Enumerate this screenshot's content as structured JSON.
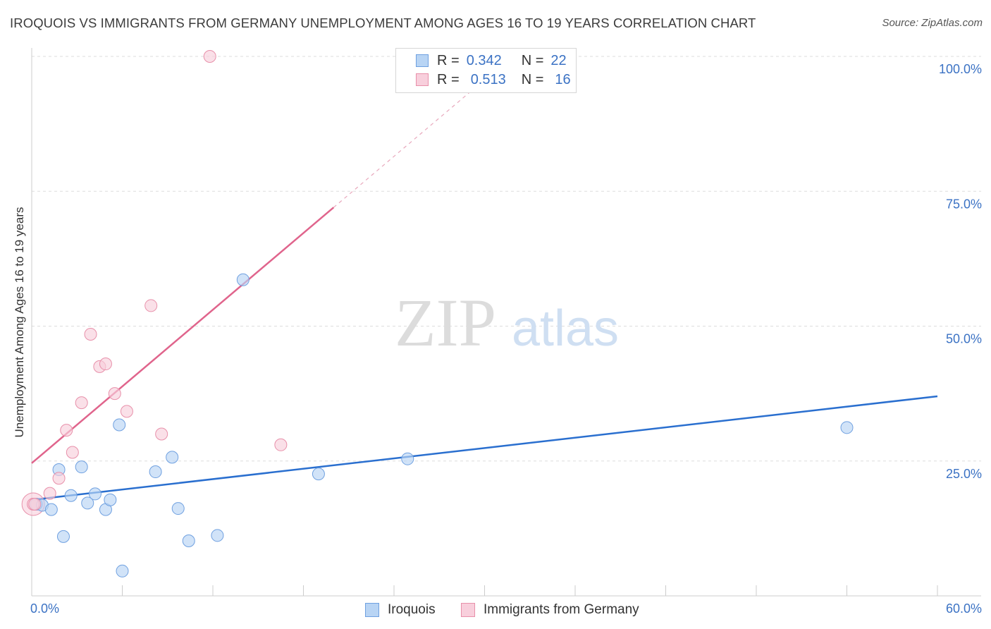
{
  "title": "IROQUOIS VS IMMIGRANTS FROM GERMANY UNEMPLOYMENT AMONG AGES 16 TO 19 YEARS CORRELATION CHART",
  "source": "Source: ZipAtlas.com",
  "watermark": {
    "zip": "ZIP",
    "atlas": "atlas"
  },
  "legend": {
    "rows": [
      {
        "r_label": "R =",
        "r_value": "0.342",
        "n_label": "N =",
        "n_value": "22",
        "color": "#a8c8f0",
        "border": "#6fa0e0"
      },
      {
        "r_label": "R =",
        "r_value": "0.513",
        "n_label": "N =",
        "n_value": "16",
        "color": "#f8c0d0",
        "border": "#e890aa"
      }
    ]
  },
  "bottom_legend": [
    {
      "label": "Iroquois",
      "color": "#b8d4f4",
      "border": "#6fa0e0"
    },
    {
      "label": "Immigrants from Germany",
      "color": "#f8cfdc",
      "border": "#e890aa"
    }
  ],
  "chart_data": {
    "type": "scatter",
    "title": "IROQUOIS VS IMMIGRANTS FROM GERMANY UNEMPLOYMENT AMONG AGES 16 TO 19 YEARS CORRELATION CHART",
    "xlabel": "",
    "ylabel": "Unemployment Among Ages 16 to 19 years",
    "xlim": [
      0,
      60
    ],
    "ylim": [
      0,
      100
    ],
    "x_tick_labels": [
      "0.0%",
      "60.0%"
    ],
    "y_tick_labels": [
      "25.0%",
      "50.0%",
      "75.0%",
      "100.0%"
    ],
    "y_ticks": [
      25,
      50,
      75,
      100
    ],
    "x_minor_ticks": [
      0,
      6,
      12,
      18,
      24,
      30,
      36,
      42,
      48,
      54,
      60
    ],
    "series": [
      {
        "name": "Iroquois",
        "color": "#6fa0e0",
        "fill": "#b8d4f4",
        "points": [
          [
            0.3,
            17.0
          ],
          [
            0.7,
            16.8
          ],
          [
            1.3,
            16.0
          ],
          [
            1.8,
            23.4
          ],
          [
            2.1,
            11.0
          ],
          [
            2.6,
            18.6
          ],
          [
            3.3,
            23.9
          ],
          [
            3.7,
            17.2
          ],
          [
            4.2,
            18.9
          ],
          [
            4.9,
            16.0
          ],
          [
            5.2,
            17.8
          ],
          [
            5.8,
            31.7
          ],
          [
            6.0,
            4.6
          ],
          [
            8.2,
            23.0
          ],
          [
            9.3,
            25.7
          ],
          [
            9.7,
            16.2
          ],
          [
            10.4,
            10.2
          ],
          [
            12.3,
            11.2
          ],
          [
            14.0,
            58.6
          ],
          [
            19.0,
            22.6
          ],
          [
            24.9,
            25.4
          ],
          [
            54.0,
            31.2
          ]
        ],
        "trend": {
          "x0": 0,
          "y0": 17.8,
          "x1": 60,
          "y1": 37.0
        }
      },
      {
        "name": "Immigrants from Germany",
        "color": "#e890aa",
        "fill": "#f8cfdc",
        "points": [
          [
            0.1,
            17.0
          ],
          [
            1.2,
            19.0
          ],
          [
            1.8,
            21.8
          ],
          [
            2.3,
            30.7
          ],
          [
            2.7,
            26.6
          ],
          [
            3.3,
            35.8
          ],
          [
            3.9,
            48.5
          ],
          [
            4.5,
            42.5
          ],
          [
            4.9,
            43.0
          ],
          [
            5.5,
            37.5
          ],
          [
            6.3,
            34.2
          ],
          [
            7.9,
            53.8
          ],
          [
            8.6,
            30.0
          ],
          [
            11.8,
            100.0
          ],
          [
            16.5,
            28.0
          ],
          [
            0.2,
            17.0
          ]
        ],
        "trend": {
          "x0": 0,
          "y0": 24.6,
          "x1": 20,
          "y1": 72.0
        },
        "trend_extension": {
          "x0": 20,
          "y0": 72.0,
          "x1": 29.5,
          "y1": 94.5
        }
      }
    ]
  }
}
